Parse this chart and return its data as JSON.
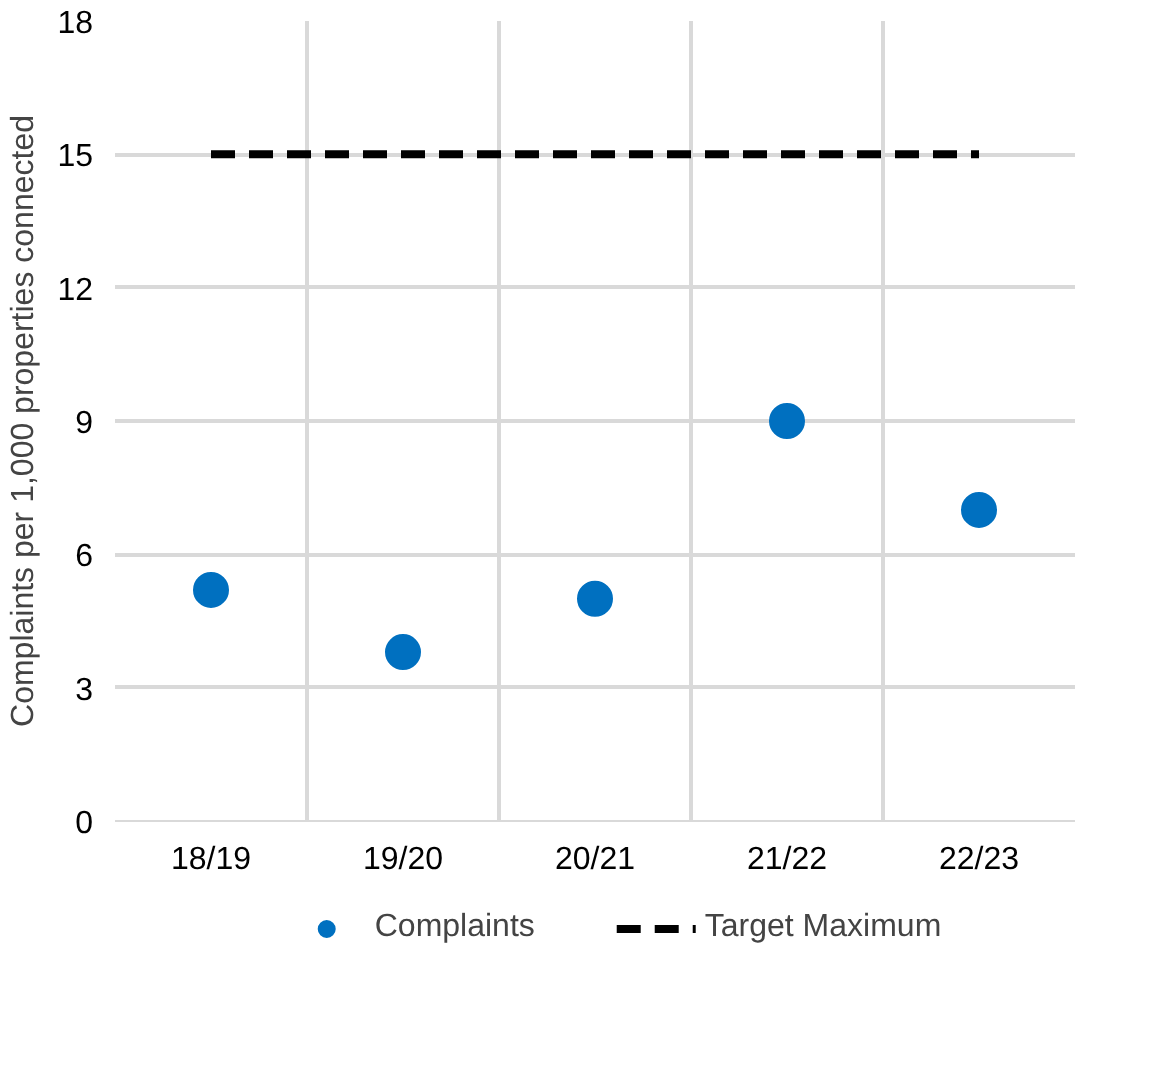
{
  "chart_data": {
    "type": "scatter",
    "ylabel": "Complaints per 1,000 properties connected",
    "categories": [
      "18/19",
      "19/20",
      "20/21",
      "21/22",
      "22/23"
    ],
    "series": [
      {
        "name": "Complaints",
        "color": "#0070c0",
        "marker": "circle",
        "values": [
          5.2,
          3.8,
          5.0,
          9.0,
          7.0
        ]
      },
      {
        "name": "Target Maximum",
        "color": "#000000",
        "type": "line",
        "line_style": "dashed",
        "marker": "none",
        "values": [
          15,
          15,
          15,
          15,
          15
        ]
      }
    ],
    "ylim": [
      0,
      18
    ],
    "yticks": [
      0,
      3,
      6,
      9,
      12,
      15,
      18
    ],
    "grid": true,
    "legend": "bottom"
  }
}
